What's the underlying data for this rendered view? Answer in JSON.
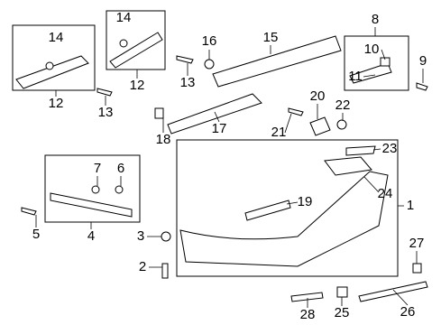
{
  "callouts": [
    {
      "label": "14"
    },
    {
      "label": "12"
    },
    {
      "label": "14"
    },
    {
      "label": "12"
    },
    {
      "label": "16"
    },
    {
      "label": "15"
    },
    {
      "label": "13"
    },
    {
      "label": "13"
    },
    {
      "label": "8"
    },
    {
      "label": "10"
    },
    {
      "label": "11"
    },
    {
      "label": "9"
    },
    {
      "label": "21"
    },
    {
      "label": "20"
    },
    {
      "label": "22"
    },
    {
      "label": "18"
    },
    {
      "label": "17"
    },
    {
      "label": "7"
    },
    {
      "label": "6"
    },
    {
      "label": "4"
    },
    {
      "label": "5"
    },
    {
      "label": "23"
    },
    {
      "label": "24"
    },
    {
      "label": "1"
    },
    {
      "label": "19"
    },
    {
      "label": "3"
    },
    {
      "label": "2"
    },
    {
      "label": "27"
    },
    {
      "label": "28"
    },
    {
      "label": "25"
    },
    {
      "label": "26"
    }
  ]
}
